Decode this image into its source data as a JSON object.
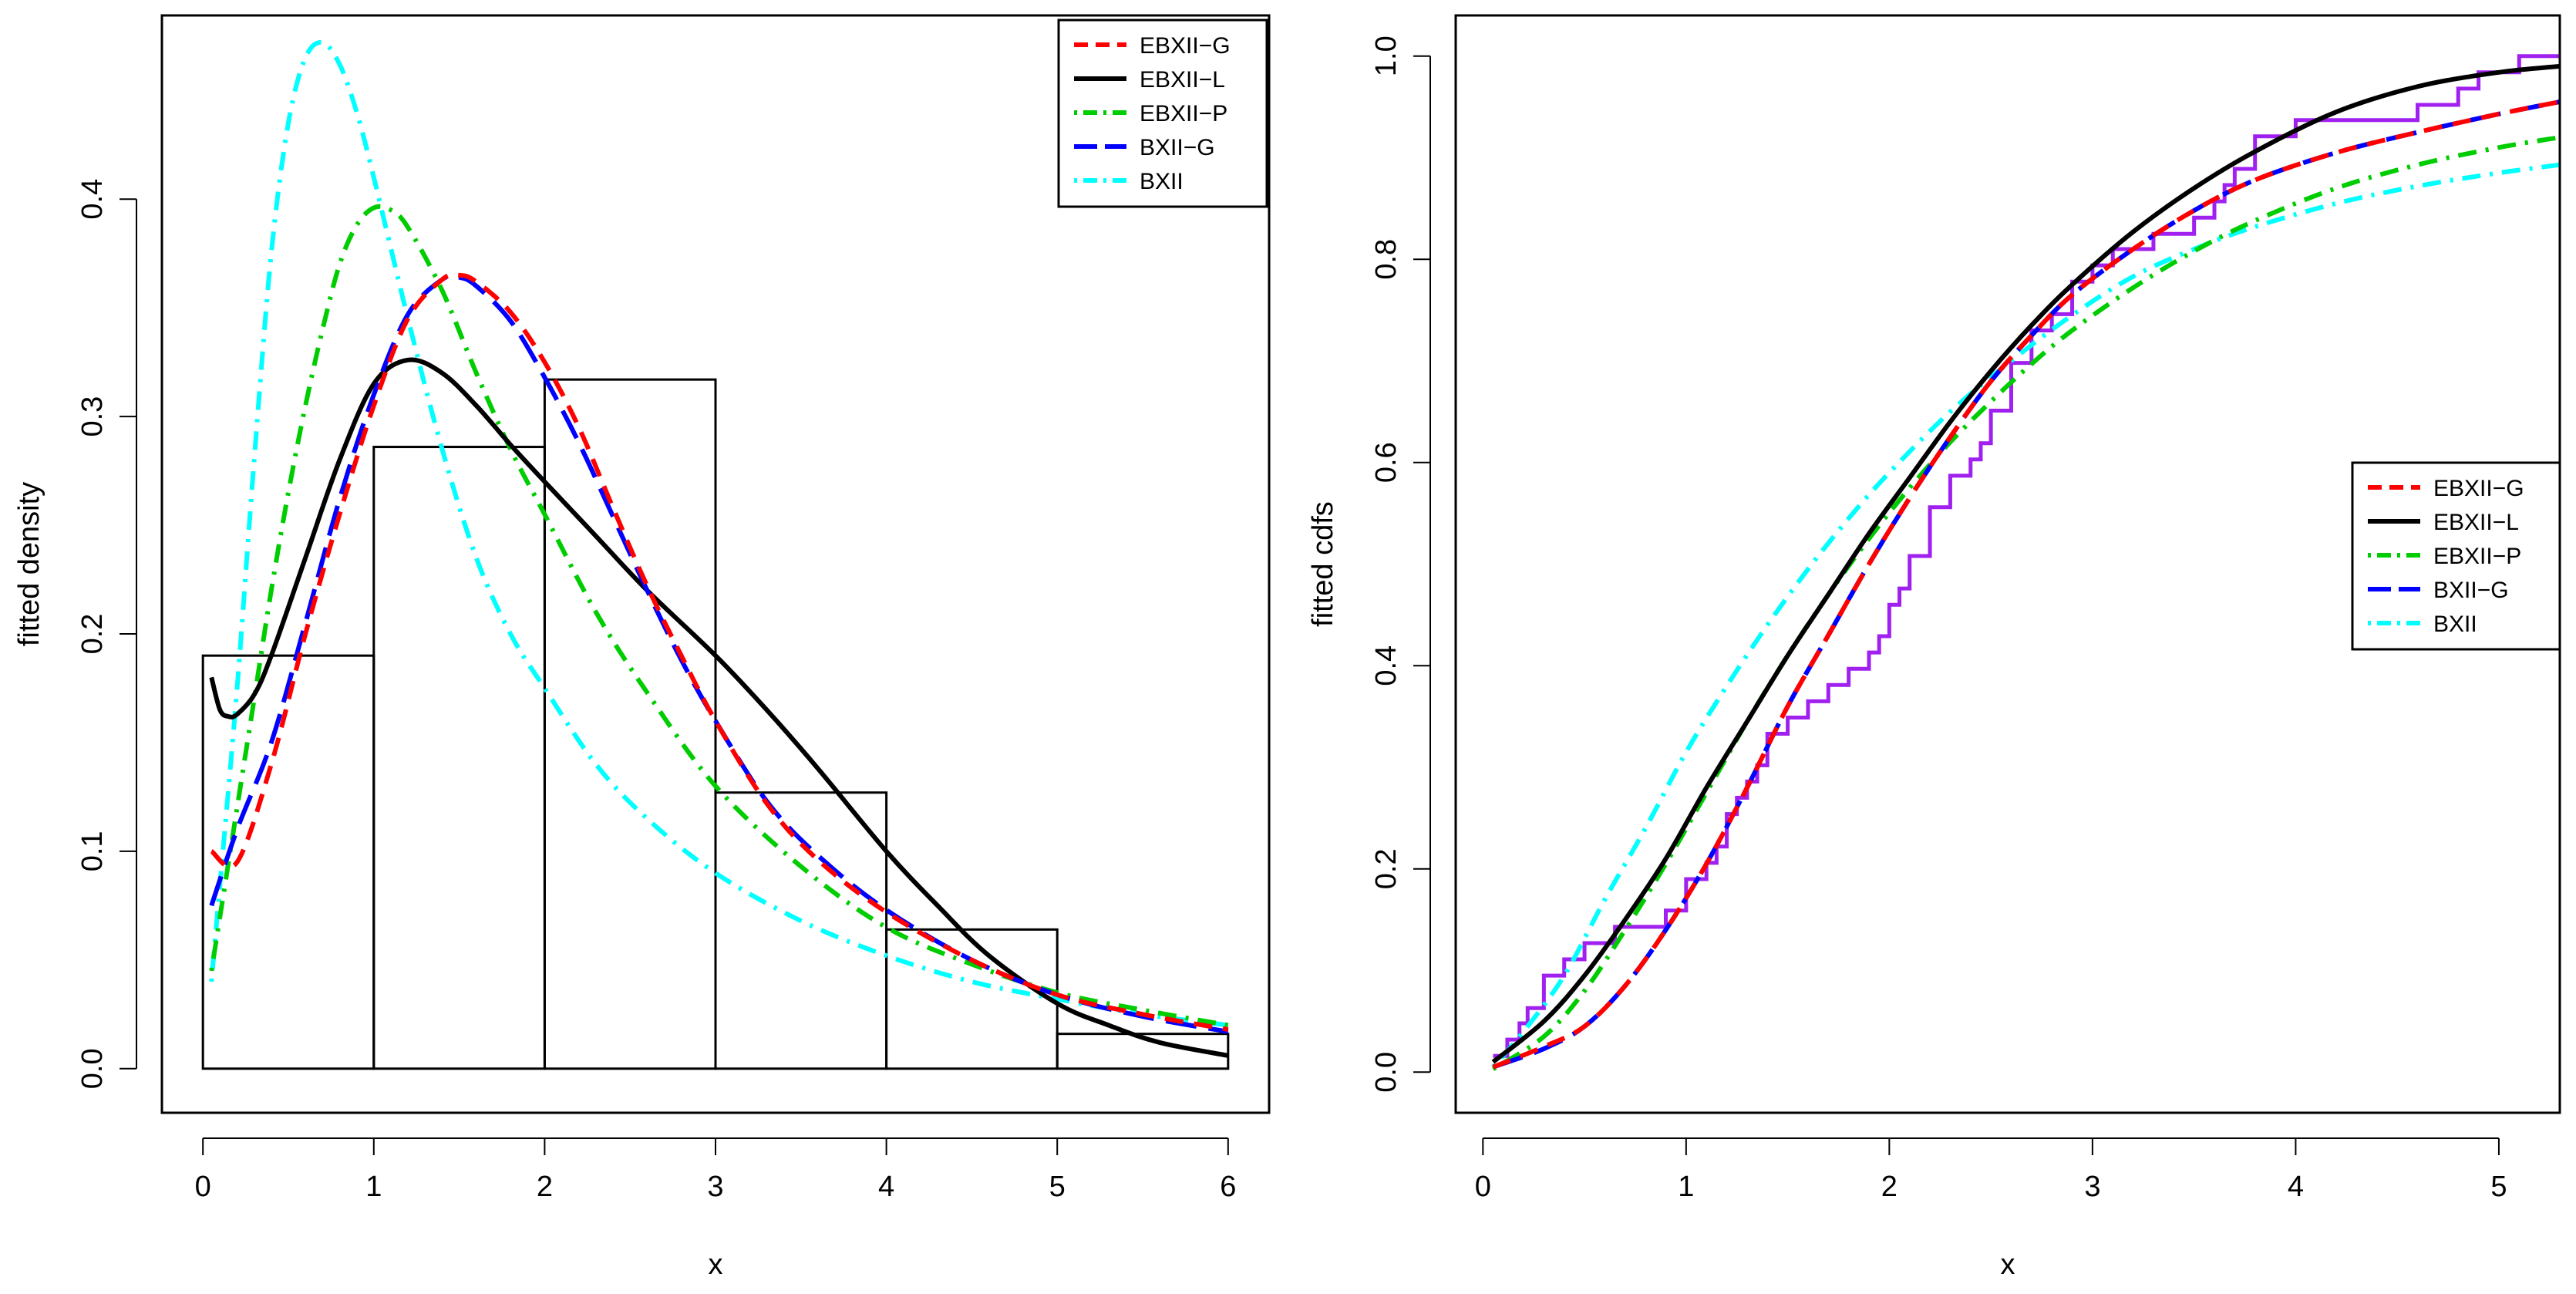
{
  "chart_data": [
    {
      "type": "histogram-with-lines",
      "title": "",
      "xlabel": "x",
      "ylabel": "fitted density",
      "xlim": [
        -0.24,
        6.24
      ],
      "ylim": [
        -0.0203,
        0.4845
      ],
      "xticks": [
        "0",
        "1",
        "2",
        "3",
        "4",
        "5",
        "6"
      ],
      "yticks": [
        "0.0",
        "0.1",
        "0.2",
        "0.3",
        "0.4"
      ],
      "legend_position": "top-right",
      "legend": [
        "EBXII−G",
        "EBXII−L",
        "EBXII−P",
        "BXII−G",
        "BXII"
      ],
      "histogram": {
        "breaks": [
          0,
          1,
          2,
          3,
          4,
          5,
          6
        ],
        "values": [
          0.19,
          0.286,
          0.317,
          0.127,
          0.064,
          0.016
        ]
      },
      "series": [
        {
          "name": "EBXII−G",
          "color": "#ff0000",
          "dash": "dashed",
          "x": [
            0.05,
            0.2,
            0.4,
            0.6,
            0.8,
            1.0,
            1.2,
            1.4,
            1.5,
            1.6,
            1.8,
            2.0,
            2.2,
            2.4,
            2.6,
            2.8,
            3.0,
            3.3,
            3.6,
            4.0,
            4.5,
            5.0,
            5.5,
            6.0
          ],
          "y": [
            0.1,
            0.095,
            0.14,
            0.2,
            0.255,
            0.305,
            0.345,
            0.363,
            0.365,
            0.362,
            0.348,
            0.325,
            0.295,
            0.258,
            0.222,
            0.19,
            0.16,
            0.122,
            0.096,
            0.072,
            0.05,
            0.034,
            0.025,
            0.018
          ]
        },
        {
          "name": "EBXII−L",
          "color": "#000000",
          "dash": "solid",
          "x": [
            0.05,
            0.1,
            0.15,
            0.2,
            0.3,
            0.4,
            0.6,
            0.8,
            1.0,
            1.2,
            1.4,
            1.6,
            1.8,
            2.0,
            2.3,
            2.6,
            3.0,
            3.3,
            3.6,
            4.0,
            4.3,
            4.6,
            5.0,
            5.3,
            5.6,
            6.0
          ],
          "y": [
            0.18,
            0.165,
            0.162,
            0.163,
            0.172,
            0.19,
            0.235,
            0.28,
            0.315,
            0.326,
            0.32,
            0.305,
            0.287,
            0.27,
            0.245,
            0.22,
            0.19,
            0.165,
            0.138,
            0.1,
            0.075,
            0.052,
            0.03,
            0.02,
            0.012,
            0.006
          ]
        },
        {
          "name": "EBXII−P",
          "color": "#00cd00",
          "dash": "dotdash",
          "x": [
            0.05,
            0.1,
            0.2,
            0.3,
            0.4,
            0.5,
            0.6,
            0.7,
            0.8,
            0.9,
            1.0,
            1.1,
            1.2,
            1.4,
            1.6,
            1.8,
            2.0,
            2.3,
            2.6,
            3.0,
            3.5,
            4.0,
            4.5,
            5.0,
            5.5,
            6.0
          ],
          "y": [
            0.045,
            0.07,
            0.12,
            0.17,
            0.22,
            0.265,
            0.305,
            0.34,
            0.37,
            0.388,
            0.396,
            0.395,
            0.387,
            0.358,
            0.32,
            0.285,
            0.255,
            0.21,
            0.173,
            0.13,
            0.093,
            0.065,
            0.048,
            0.035,
            0.027,
            0.02
          ]
        },
        {
          "name": "BXII−G",
          "color": "#0000ff",
          "dash": "longdash",
          "x": [
            0.05,
            0.2,
            0.4,
            0.6,
            0.8,
            1.0,
            1.2,
            1.4,
            1.5,
            1.6,
            1.8,
            2.0,
            2.2,
            2.4,
            2.6,
            2.8,
            3.0,
            3.3,
            3.6,
            4.0,
            4.5,
            5.0,
            5.5,
            6.0
          ],
          "y": [
            0.075,
            0.11,
            0.15,
            0.205,
            0.262,
            0.31,
            0.347,
            0.363,
            0.364,
            0.36,
            0.344,
            0.318,
            0.288,
            0.254,
            0.22,
            0.188,
            0.16,
            0.123,
            0.098,
            0.073,
            0.05,
            0.034,
            0.024,
            0.017
          ]
        },
        {
          "name": "BXII",
          "color": "#00ffff",
          "dash": "dotdash",
          "x": [
            0.05,
            0.1,
            0.2,
            0.3,
            0.4,
            0.5,
            0.6,
            0.7,
            0.8,
            0.9,
            1.0,
            1.2,
            1.4,
            1.6,
            1.8,
            2.0,
            2.3,
            2.6,
            3.0,
            3.5,
            4.0,
            4.5,
            5.0,
            5.5,
            6.0
          ],
          "y": [
            0.04,
            0.085,
            0.175,
            0.28,
            0.375,
            0.435,
            0.465,
            0.472,
            0.462,
            0.44,
            0.41,
            0.345,
            0.285,
            0.235,
            0.2,
            0.175,
            0.14,
            0.115,
            0.09,
            0.068,
            0.052,
            0.04,
            0.032,
            0.025,
            0.02
          ]
        }
      ]
    },
    {
      "type": "line",
      "title": "",
      "xlabel": "x",
      "ylabel": "fitted cdfs",
      "xlim": [
        -0.134,
        5.3
      ],
      "ylim": [
        -0.04,
        1.04
      ],
      "xticks": [
        "0",
        "1",
        "2",
        "3",
        "4",
        "5"
      ],
      "yticks": [
        "0.0",
        "0.2",
        "0.4",
        "0.6",
        "0.8",
        "1.0"
      ],
      "legend_position": "center-right",
      "legend": [
        "EBXII−G",
        "EBXII−L",
        "EBXII−P",
        "BXII−G",
        "BXII"
      ],
      "empirical_cdf": {
        "color": "#a020f0",
        "x": [
          0.05,
          0.12,
          0.18,
          0.22,
          0.3,
          0.4,
          0.5,
          0.65,
          0.9,
          1.0,
          1.1,
          1.15,
          1.2,
          1.25,
          1.3,
          1.35,
          1.4,
          1.5,
          1.6,
          1.7,
          1.8,
          1.9,
          1.95,
          2.0,
          2.05,
          2.1,
          2.2,
          2.3,
          2.4,
          2.45,
          2.5,
          2.6,
          2.7,
          2.8,
          2.9,
          3.0,
          3.1,
          3.3,
          3.5,
          3.6,
          3.65,
          3.7,
          3.8,
          4.0,
          4.6,
          4.8,
          4.9,
          5.1,
          5.15
        ],
        "y": [
          0.016,
          0.032,
          0.048,
          0.063,
          0.095,
          0.111,
          0.127,
          0.143,
          0.159,
          0.19,
          0.206,
          0.222,
          0.254,
          0.27,
          0.286,
          0.302,
          0.333,
          0.349,
          0.365,
          0.381,
          0.397,
          0.413,
          0.429,
          0.46,
          0.476,
          0.508,
          0.556,
          0.587,
          0.603,
          0.619,
          0.651,
          0.698,
          0.73,
          0.746,
          0.778,
          0.794,
          0.81,
          0.825,
          0.841,
          0.857,
          0.873,
          0.889,
          0.921,
          0.937,
          0.952,
          0.968,
          0.984,
          1.0,
          1.0
        ]
      },
      "series": [
        {
          "name": "EBXII−G",
          "color": "#ff0000",
          "dash": "dashed",
          "x": [
            0.05,
            0.3,
            0.5,
            0.7,
            0.9,
            1.1,
            1.3,
            1.5,
            1.7,
            1.9,
            2.1,
            2.3,
            2.5,
            2.7,
            2.9,
            3.2,
            3.5,
            3.8,
            4.2,
            4.6,
            5.0,
            5.3
          ],
          "y": [
            0.005,
            0.025,
            0.045,
            0.085,
            0.14,
            0.205,
            0.28,
            0.36,
            0.43,
            0.5,
            0.565,
            0.625,
            0.68,
            0.725,
            0.765,
            0.81,
            0.848,
            0.878,
            0.905,
            0.925,
            0.943,
            0.955
          ]
        },
        {
          "name": "EBXII−L",
          "color": "#000000",
          "dash": "solid",
          "x": [
            0.05,
            0.3,
            0.5,
            0.7,
            0.9,
            1.1,
            1.3,
            1.5,
            1.7,
            1.9,
            2.1,
            2.3,
            2.5,
            2.7,
            2.9,
            3.2,
            3.5,
            3.8,
            4.2,
            4.6,
            5.0,
            5.3
          ],
          "y": [
            0.01,
            0.05,
            0.095,
            0.15,
            0.21,
            0.28,
            0.345,
            0.41,
            0.47,
            0.53,
            0.585,
            0.64,
            0.69,
            0.735,
            0.775,
            0.827,
            0.87,
            0.906,
            0.945,
            0.97,
            0.984,
            0.99
          ]
        },
        {
          "name": "EBXII−P",
          "color": "#00cd00",
          "dash": "dotdash",
          "x": [
            0.05,
            0.3,
            0.5,
            0.7,
            0.9,
            1.1,
            1.3,
            1.5,
            1.7,
            1.9,
            2.1,
            2.3,
            2.5,
            2.7,
            2.9,
            3.2,
            3.5,
            3.8,
            4.2,
            4.6,
            5.0,
            5.3
          ],
          "y": [
            0.003,
            0.035,
            0.08,
            0.14,
            0.205,
            0.275,
            0.345,
            0.41,
            0.47,
            0.525,
            0.575,
            0.62,
            0.66,
            0.697,
            0.73,
            0.772,
            0.808,
            0.838,
            0.87,
            0.893,
            0.91,
            0.92
          ]
        },
        {
          "name": "BXII−G",
          "color": "#0000ff",
          "dash": "longdash",
          "x": [
            0.05,
            0.3,
            0.5,
            0.7,
            0.9,
            1.1,
            1.3,
            1.5,
            1.7,
            1.9,
            2.1,
            2.3,
            2.5,
            2.7,
            2.9,
            3.2,
            3.5,
            3.8,
            4.2,
            4.6,
            5.0,
            5.3
          ],
          "y": [
            0.005,
            0.023,
            0.045,
            0.085,
            0.14,
            0.205,
            0.28,
            0.36,
            0.43,
            0.5,
            0.565,
            0.625,
            0.68,
            0.725,
            0.765,
            0.81,
            0.848,
            0.878,
            0.905,
            0.925,
            0.943,
            0.955
          ]
        },
        {
          "name": "BXII",
          "color": "#00ffff",
          "dash": "dotdash",
          "x": [
            0.05,
            0.2,
            0.4,
            0.6,
            0.8,
            1.0,
            1.2,
            1.4,
            1.6,
            1.8,
            2.0,
            2.3,
            2.6,
            2.9,
            3.2,
            3.5,
            3.8,
            4.2,
            4.6,
            5.0,
            5.3
          ],
          "y": [
            0.005,
            0.04,
            0.095,
            0.17,
            0.24,
            0.315,
            0.38,
            0.44,
            0.495,
            0.545,
            0.59,
            0.65,
            0.7,
            0.745,
            0.783,
            0.81,
            0.832,
            0.855,
            0.872,
            0.885,
            0.893
          ]
        }
      ]
    }
  ]
}
